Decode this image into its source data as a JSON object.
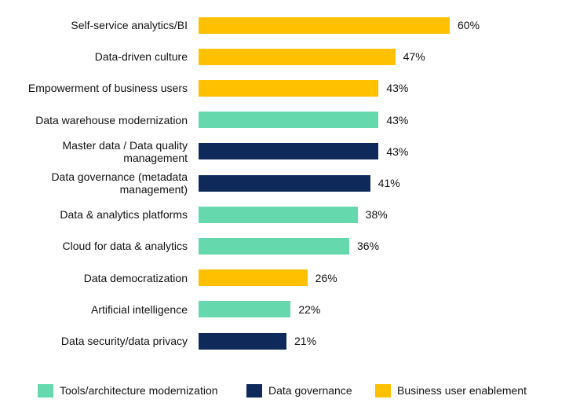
{
  "chart_data": {
    "type": "bar",
    "orientation": "horizontal",
    "categories": [
      "Self-service analytics/BI",
      "Data-driven culture",
      "Empowerment of business users",
      "Data warehouse modernization",
      "Master data / Data quality management",
      "Data governance (metadata management)",
      "Data & analytics platforms",
      "Cloud for data & analytics",
      "Data democratization",
      "Artificial intelligence",
      "Data security/data privacy"
    ],
    "series": [
      {
        "name": "Tools/architecture modernization",
        "color": "#66d8ad",
        "values": [
          null,
          null,
          null,
          43,
          null,
          null,
          38,
          36,
          null,
          22,
          null
        ],
        "value_labels": [
          null,
          null,
          null,
          "43%",
          null,
          null,
          "38%",
          "36%",
          null,
          "22%",
          null
        ]
      },
      {
        "name": "Data governance",
        "color": "#0f2a5a",
        "values": [
          null,
          null,
          null,
          null,
          43,
          41,
          null,
          null,
          null,
          null,
          21
        ],
        "value_labels": [
          null,
          null,
          null,
          null,
          "43%",
          "41%",
          null,
          null,
          null,
          null,
          "21%"
        ]
      },
      {
        "name": "Business user enablement",
        "color": "#ffc000",
        "values": [
          60,
          47,
          43,
          null,
          null,
          null,
          null,
          null,
          26,
          null,
          null
        ],
        "value_labels": [
          "60%",
          "47%",
          "43%",
          null,
          null,
          null,
          null,
          null,
          "26%",
          null,
          null
        ]
      }
    ],
    "legend": "bottom"
  }
}
